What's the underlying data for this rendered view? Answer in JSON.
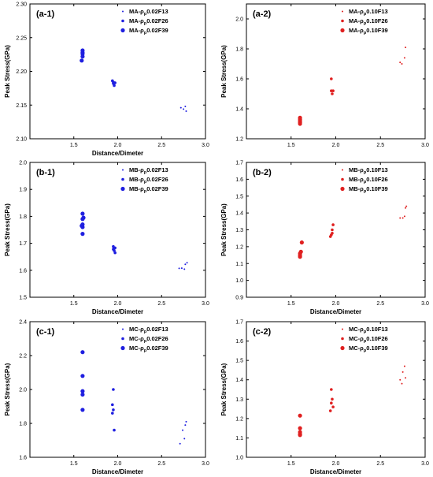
{
  "chart_data": [
    {
      "panel_label": "(a-1)",
      "type": "scatter",
      "color": "#1f1fe0",
      "xlabel": "Distance/Dimeter",
      "ylabel": "Peak Stress(GPa)",
      "xlim": [
        1.0,
        3.0
      ],
      "ylim": [
        2.1,
        2.3
      ],
      "xticks": [
        1.5,
        2.0,
        2.5,
        3.0
      ],
      "yticks": [
        2.1,
        2.15,
        2.2,
        2.25,
        2.3
      ],
      "xtick_labels": [
        "1.5",
        "2.0",
        "2.5",
        "3.0"
      ],
      "ytick_labels": [
        "2.10",
        "2.15",
        "2.20",
        "2.25",
        "2.30"
      ],
      "legend_position": "top-right",
      "series": [
        {
          "name": "MA-ρp0.02F13",
          "name_parts": [
            "MA-ρ",
            "p",
            "0.02F13"
          ],
          "marker_size": 1,
          "points": [
            [
              2.72,
              2.146
            ],
            [
              2.75,
              2.144
            ],
            [
              2.77,
              2.148
            ],
            [
              2.78,
              2.141
            ]
          ]
        },
        {
          "name": "MA-ρp0.02F26",
          "name_parts": [
            "MA-ρ",
            "p",
            "0.02F26"
          ],
          "marker_size": 1.8,
          "points": [
            [
              1.94,
              2.186
            ],
            [
              1.95,
              2.182
            ],
            [
              1.96,
              2.179
            ],
            [
              1.97,
              2.183
            ],
            [
              1.95,
              2.184
            ]
          ]
        },
        {
          "name": "MA-ρp0.02F39",
          "name_parts": [
            "MA-ρ",
            "p",
            "0.02F39"
          ],
          "marker_size": 2.6,
          "points": [
            [
              1.6,
              2.231
            ],
            [
              1.6,
              2.228
            ],
            [
              1.6,
              2.226
            ],
            [
              1.6,
              2.222
            ],
            [
              1.59,
              2.216
            ]
          ]
        }
      ]
    },
    {
      "panel_label": "(a-2)",
      "type": "scatter",
      "color": "#e02020",
      "xlabel": "",
      "ylabel": "Peak Stress(GPa)",
      "xlim": [
        1.0,
        3.0
      ],
      "ylim": [
        1.2,
        2.1
      ],
      "xticks": [
        1.5,
        2.0,
        2.5,
        3.0
      ],
      "yticks": [
        1.2,
        1.4,
        1.6,
        1.8,
        2.0
      ],
      "xtick_labels": [
        "1.5",
        "2.0",
        "2.5",
        "3.0"
      ],
      "ytick_labels": [
        "1.2",
        "1.4",
        "1.6",
        "1.8",
        "2.0"
      ],
      "legend_position": "top-right",
      "series": [
        {
          "name": "MA-ρp0.10F13",
          "name_parts": [
            "MA-ρ",
            "p",
            "0.10F13"
          ],
          "marker_size": 1,
          "points": [
            [
              2.72,
              1.71
            ],
            [
              2.74,
              1.7
            ],
            [
              2.77,
              1.74
            ],
            [
              2.78,
              1.81
            ]
          ]
        },
        {
          "name": "MA-ρp0.10F26",
          "name_parts": [
            "MA-ρ",
            "p",
            "0.10F26"
          ],
          "marker_size": 1.8,
          "points": [
            [
              1.95,
              1.6
            ],
            [
              1.95,
              1.52
            ],
            [
              1.96,
              1.5
            ],
            [
              1.97,
              1.52
            ]
          ]
        },
        {
          "name": "MA-ρp0.10F39",
          "name_parts": [
            "MA-ρ",
            "p",
            "0.10F39"
          ],
          "marker_size": 2.6,
          "points": [
            [
              1.6,
              1.34
            ],
            [
              1.6,
              1.33
            ],
            [
              1.6,
              1.32
            ],
            [
              1.6,
              1.31
            ],
            [
              1.6,
              1.3
            ]
          ]
        }
      ]
    },
    {
      "panel_label": "(b-1)",
      "type": "scatter",
      "color": "#1f1fe0",
      "xlabel": "Distance/Dimeter",
      "ylabel": "Peak Stress(GPa)",
      "xlim": [
        1.0,
        3.0
      ],
      "ylim": [
        1.5,
        2.0
      ],
      "xticks": [
        1.5,
        2.0,
        2.5,
        3.0
      ],
      "yticks": [
        1.5,
        1.6,
        1.7,
        1.8,
        1.9,
        2.0
      ],
      "xtick_labels": [
        "1.5",
        "2.0",
        "2.5",
        "3.0"
      ],
      "ytick_labels": [
        "1.5",
        "1.6",
        "1.7",
        "1.8",
        "1.9",
        "2.0"
      ],
      "legend_position": "top-right",
      "series": [
        {
          "name": "MB-ρp0.02F13",
          "name_parts": [
            "MB-ρ",
            "p",
            "0.02F13"
          ],
          "marker_size": 1,
          "points": [
            [
              2.7,
              1.607
            ],
            [
              2.73,
              1.608
            ],
            [
              2.76,
              1.604
            ],
            [
              2.77,
              1.622
            ],
            [
              2.79,
              1.628
            ]
          ]
        },
        {
          "name": "MB-ρp0.02F26",
          "name_parts": [
            "MB-ρ",
            "p",
            "0.02F26"
          ],
          "marker_size": 1.8,
          "points": [
            [
              1.95,
              1.688
            ],
            [
              1.95,
              1.678
            ],
            [
              1.96,
              1.673
            ],
            [
              1.97,
              1.665
            ],
            [
              1.97,
              1.683
            ]
          ]
        },
        {
          "name": "MB-ρp0.02F39",
          "name_parts": [
            "MB-ρ",
            "p",
            "0.02F39"
          ],
          "marker_size": 2.6,
          "points": [
            [
              1.6,
              1.81
            ],
            [
              1.6,
              1.79
            ],
            [
              1.6,
              1.77
            ],
            [
              1.6,
              1.76
            ],
            [
              1.6,
              1.735
            ],
            [
              1.61,
              1.795
            ],
            [
              1.59,
              1.765
            ]
          ]
        }
      ]
    },
    {
      "panel_label": "(b-2)",
      "type": "scatter",
      "color": "#e02020",
      "xlabel": "Distance/Dimeter",
      "ylabel": "Peak Stress(GPa)",
      "xlim": [
        1.0,
        3.0
      ],
      "ylim": [
        0.9,
        1.7
      ],
      "xticks": [
        1.5,
        2.0,
        2.5,
        3.0
      ],
      "yticks": [
        0.9,
        1.0,
        1.1,
        1.2,
        1.3,
        1.4,
        1.5,
        1.6,
        1.7
      ],
      "xtick_labels": [
        "1.5",
        "2.0",
        "2.5",
        "3.0"
      ],
      "ytick_labels": [
        "0.9",
        "1.0",
        "1.1",
        "1.2",
        "1.3",
        "1.4",
        "1.5",
        "1.6",
        "1.7"
      ],
      "legend_position": "top-right",
      "series": [
        {
          "name": "MB-ρp0.10F13",
          "name_parts": [
            "MB-ρ",
            "p",
            "0.10F13"
          ],
          "marker_size": 1,
          "points": [
            [
              2.72,
              1.37
            ],
            [
              2.75,
              1.37
            ],
            [
              2.77,
              1.38
            ],
            [
              2.78,
              1.43
            ],
            [
              2.79,
              1.44
            ]
          ]
        },
        {
          "name": "MB-ρp0.10F26",
          "name_parts": [
            "MB-ρ",
            "p",
            "0.10F26"
          ],
          "marker_size": 1.8,
          "points": [
            [
              1.94,
              1.26
            ],
            [
              1.95,
              1.27
            ],
            [
              1.96,
              1.3
            ],
            [
              1.97,
              1.33
            ],
            [
              1.96,
              1.28
            ]
          ]
        },
        {
          "name": "MB-ρp0.10F39",
          "name_parts": [
            "MB-ρ",
            "p",
            "0.10F39"
          ],
          "marker_size": 2.6,
          "points": [
            [
              1.6,
              1.16
            ],
            [
              1.6,
              1.15
            ],
            [
              1.6,
              1.14
            ],
            [
              1.61,
              1.17
            ],
            [
              1.62,
              1.225
            ]
          ]
        }
      ]
    },
    {
      "panel_label": "(c-1)",
      "type": "scatter",
      "color": "#1f1fe0",
      "xlabel": "Distance/Dimeter",
      "ylabel": "Peak Stress(GPa)",
      "xlim": [
        1.0,
        3.0
      ],
      "ylim": [
        1.6,
        2.4
      ],
      "xticks": [
        1.5,
        2.0,
        2.5,
        3.0
      ],
      "yticks": [
        1.6,
        1.8,
        2.0,
        2.2,
        2.4
      ],
      "xtick_labels": [
        "1.5",
        "2.0",
        "2.5",
        "3.0"
      ],
      "ytick_labels": [
        "1.6",
        "1.8",
        "2.0",
        "2.2",
        "2.4"
      ],
      "legend_position": "top-right",
      "series": [
        {
          "name": "MC-ρp0.02F13",
          "name_parts": [
            "MC-ρ",
            "p",
            "0.02F13"
          ],
          "marker_size": 1,
          "points": [
            [
              2.71,
              1.68
            ],
            [
              2.74,
              1.76
            ],
            [
              2.76,
              1.71
            ],
            [
              2.77,
              1.79
            ],
            [
              2.78,
              1.81
            ]
          ]
        },
        {
          "name": "MC-ρp0.02F26",
          "name_parts": [
            "MC-ρ",
            "p",
            "0.02F26"
          ],
          "marker_size": 1.8,
          "points": [
            [
              1.95,
              2.0
            ],
            [
              1.94,
              1.91
            ],
            [
              1.95,
              1.88
            ],
            [
              1.94,
              1.86
            ],
            [
              1.96,
              1.76
            ]
          ]
        },
        {
          "name": "MC-ρp0.02F39",
          "name_parts": [
            "MC-ρ",
            "p",
            "0.02F39"
          ],
          "marker_size": 2.6,
          "points": [
            [
              1.6,
              2.22
            ],
            [
              1.6,
              2.08
            ],
            [
              1.6,
              1.99
            ],
            [
              1.6,
              1.97
            ],
            [
              1.6,
              1.88
            ]
          ]
        }
      ]
    },
    {
      "panel_label": "(c-2)",
      "type": "scatter",
      "color": "#e02020",
      "xlabel": "Distance/Dimeter",
      "ylabel": "Peak Stress(GPa)",
      "xlim": [
        1.0,
        3.0
      ],
      "ylim": [
        1.0,
        1.7
      ],
      "xticks": [
        1.5,
        2.0,
        2.5,
        3.0
      ],
      "yticks": [
        1.0,
        1.1,
        1.2,
        1.3,
        1.4,
        1.5,
        1.6,
        1.7
      ],
      "xtick_labels": [
        "1.5",
        "2.0",
        "2.5",
        "3.0"
      ],
      "ytick_labels": [
        "1.0",
        "1.1",
        "1.2",
        "1.3",
        "1.4",
        "1.5",
        "1.6",
        "1.7"
      ],
      "legend_position": "top-right",
      "series": [
        {
          "name": "MC-ρp0.10F13",
          "name_parts": [
            "MC-ρ",
            "p",
            "0.10F13"
          ],
          "marker_size": 1,
          "points": [
            [
              2.72,
              1.4
            ],
            [
              2.74,
              1.38
            ],
            [
              2.75,
              1.44
            ],
            [
              2.77,
              1.47
            ],
            [
              2.78,
              1.41
            ]
          ]
        },
        {
          "name": "MC-ρp0.10F26",
          "name_parts": [
            "MC-ρ",
            "p",
            "0.10F26"
          ],
          "marker_size": 1.8,
          "points": [
            [
              1.95,
              1.35
            ],
            [
              1.96,
              1.3
            ],
            [
              1.95,
              1.28
            ],
            [
              1.97,
              1.26
            ],
            [
              1.94,
              1.24
            ]
          ]
        },
        {
          "name": "MC-ρp0.10F39",
          "name_parts": [
            "MC-ρ",
            "p",
            "0.10F39"
          ],
          "marker_size": 2.6,
          "points": [
            [
              1.6,
              1.215
            ],
            [
              1.6,
              1.15
            ],
            [
              1.6,
              1.13
            ],
            [
              1.6,
              1.12
            ],
            [
              1.6,
              1.115
            ]
          ]
        }
      ]
    }
  ]
}
